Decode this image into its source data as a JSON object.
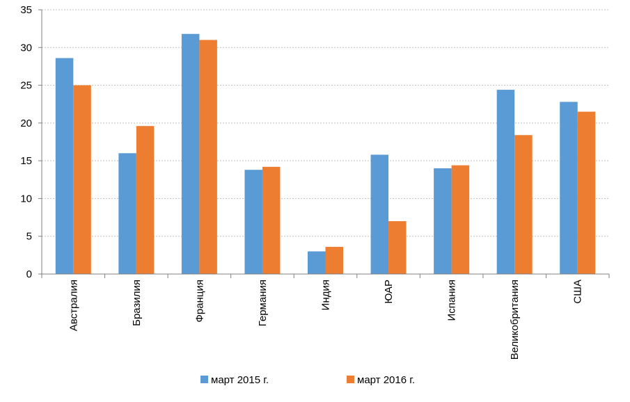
{
  "chart_data": {
    "type": "bar",
    "title": "",
    "xlabel": "",
    "ylabel": "",
    "ylim": [
      0,
      35
    ],
    "yticks": [
      0,
      5,
      10,
      15,
      20,
      25,
      30,
      35
    ],
    "grid": true,
    "legend_position": "bottom",
    "categories": [
      "Австралия",
      "Бразилия",
      "Франция",
      "Германия",
      "Индия",
      "ЮАР",
      "Испания",
      "Великобритания",
      "США"
    ],
    "series": [
      {
        "name": "март 2015 г.",
        "color": "#5B9BD5",
        "values": [
          28.6,
          16.0,
          31.8,
          13.8,
          3.0,
          15.8,
          14.0,
          24.4,
          22.8
        ]
      },
      {
        "name": "март 2016 г.",
        "color": "#ED7D31",
        "values": [
          25.0,
          19.6,
          31.0,
          14.2,
          3.6,
          7.0,
          14.4,
          18.4,
          21.5
        ]
      }
    ]
  }
}
